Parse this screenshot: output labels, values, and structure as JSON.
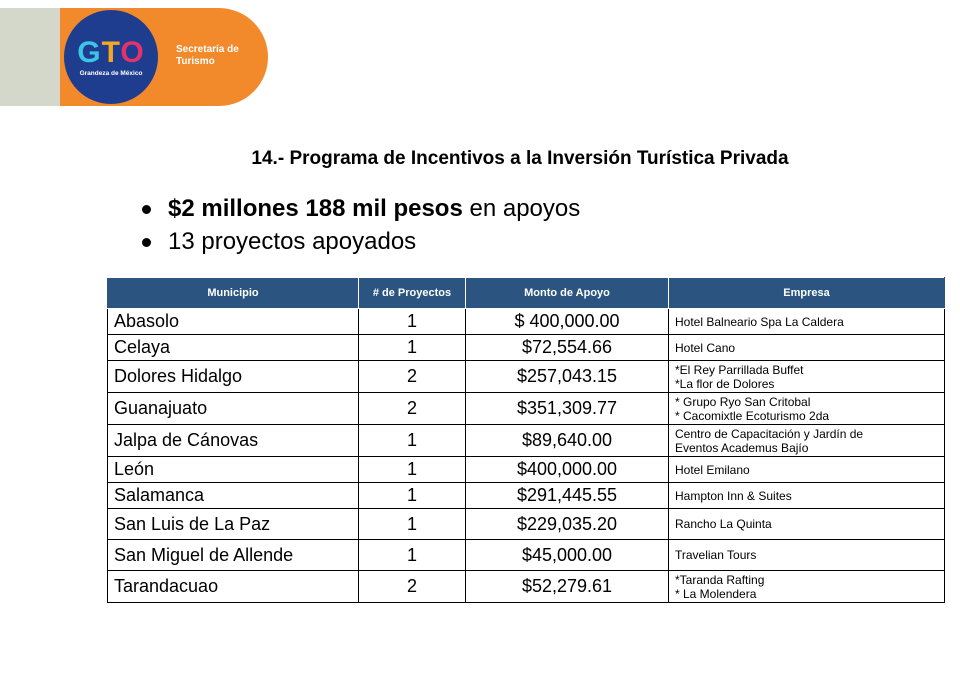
{
  "header": {
    "logo_text": "GTO",
    "logo_tagline": "Grandeza de México",
    "org_name": "Secretaría de Turismo"
  },
  "title": "14.- Programa de Incentivos a la Inversión Turística Privada",
  "bullets": [
    {
      "bold": "$2 millones 188 mil pesos",
      "rest": " en apoyos"
    },
    {
      "bold": "",
      "rest": "13 proyectos apoyados"
    }
  ],
  "table": {
    "headers": [
      "Municipio",
      "# de Proyectos",
      "Monto de Apoyo",
      "Empresa"
    ],
    "rows": [
      {
        "municipio": "Abasolo",
        "proyectos": "1",
        "monto": "$ 400,000.00",
        "empresa": [
          "Hotel Balneario Spa La Caldera"
        ]
      },
      {
        "municipio": "Celaya",
        "proyectos": "1",
        "monto": "$72,554.66",
        "empresa": [
          "Hotel Cano"
        ]
      },
      {
        "municipio": "Dolores Hidalgo",
        "proyectos": "2",
        "monto": "$257,043.15",
        "empresa": [
          "*El Rey Parrillada Buffet",
          "*La flor de Dolores"
        ]
      },
      {
        "municipio": "Guanajuato",
        "proyectos": "2",
        "monto": "$351,309.77",
        "empresa": [
          "* Grupo Ryo San Critobal",
          "* Cacomixtle Ecoturismo 2da"
        ]
      },
      {
        "municipio": "Jalpa de Cánovas",
        "proyectos": "1",
        "monto": "$89,640.00",
        "empresa": [
          "Centro de Capacitación y Jardín de",
          "Eventos Academus Bajío"
        ]
      },
      {
        "municipio": "León",
        "proyectos": "1",
        "monto": "$400,000.00",
        "empresa": [
          "Hotel Emilano"
        ]
      },
      {
        "municipio": "Salamanca",
        "proyectos": "1",
        "monto": "$291,445.55",
        "empresa": [
          "Hampton Inn & Suites"
        ]
      },
      {
        "municipio": "San Luis de La Paz",
        "proyectos": "1",
        "monto": "$229,035.20",
        "empresa": [
          "Rancho La Quinta"
        ]
      },
      {
        "municipio": "San Miguel de Allende",
        "proyectos": "1",
        "monto": "$45,000.00",
        "empresa": [
          "Travelian Tours"
        ]
      },
      {
        "municipio": "Tarandacuao",
        "proyectos": "2",
        "monto": "$52,279.61",
        "empresa": [
          "*Taranda Rafting",
          "* La Molendera"
        ]
      }
    ]
  }
}
